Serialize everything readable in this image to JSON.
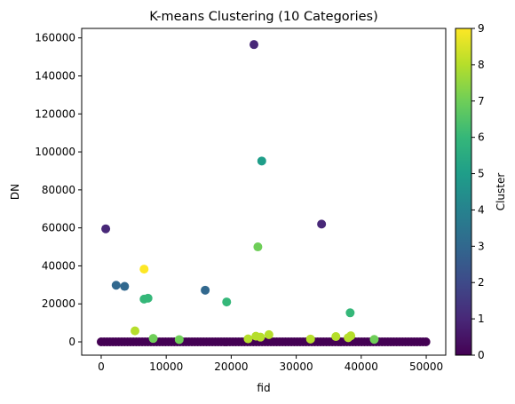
{
  "chart_data": {
    "type": "scatter",
    "title": "K-means Clustering (10 Categories)",
    "xlabel": "fid",
    "ylabel": "DN",
    "xlim": [
      -3000,
      53000
    ],
    "ylim": [
      -7000,
      165000
    ],
    "xticks": [
      0,
      10000,
      20000,
      30000,
      40000,
      50000
    ],
    "yticks": [
      0,
      20000,
      40000,
      60000,
      80000,
      100000,
      120000,
      140000,
      160000
    ],
    "grid": false,
    "colorbar": {
      "label": "Cluster",
      "min": 0,
      "max": 9,
      "ticks": [
        0,
        1,
        2,
        3,
        4,
        5,
        6,
        7,
        8,
        9
      ],
      "colormap": "viridis"
    },
    "points": [
      {
        "x": 23500,
        "y": 156500,
        "cluster": 1
      },
      {
        "x": 24700,
        "y": 95200,
        "cluster": 5
      },
      {
        "x": 700,
        "y": 59500,
        "cluster": 1
      },
      {
        "x": 33900,
        "y": 62000,
        "cluster": 1
      },
      {
        "x": 24100,
        "y": 50000,
        "cluster": 7
      },
      {
        "x": 6600,
        "y": 38300,
        "cluster": 9
      },
      {
        "x": 2300,
        "y": 29800,
        "cluster": 3
      },
      {
        "x": 3600,
        "y": 29200,
        "cluster": 3
      },
      {
        "x": 6600,
        "y": 22500,
        "cluster": 6
      },
      {
        "x": 7200,
        "y": 23000,
        "cluster": 6
      },
      {
        "x": 16000,
        "y": 27200,
        "cluster": 3
      },
      {
        "x": 19300,
        "y": 21000,
        "cluster": 6
      },
      {
        "x": 38300,
        "y": 15300,
        "cluster": 6
      },
      {
        "x": 5200,
        "y": 5800,
        "cluster": 8
      },
      {
        "x": 23800,
        "y": 3000,
        "cluster": 8
      },
      {
        "x": 24500,
        "y": 2500,
        "cluster": 8
      },
      {
        "x": 25800,
        "y": 3800,
        "cluster": 8
      },
      {
        "x": 32200,
        "y": 1500,
        "cluster": 8
      },
      {
        "x": 36100,
        "y": 2800,
        "cluster": 8
      },
      {
        "x": 38400,
        "y": 3200,
        "cluster": 8
      },
      {
        "x": 38000,
        "y": 2200,
        "cluster": 8
      },
      {
        "x": 8000,
        "y": 1800,
        "cluster": 7
      },
      {
        "x": 12000,
        "y": 1200,
        "cluster": 7
      },
      {
        "x": 22600,
        "y": 1600,
        "cluster": 8
      },
      {
        "x": 42000,
        "y": 1300,
        "cluster": 7
      }
    ],
    "baseline": {
      "x_from": 0,
      "x_to": 50000,
      "y": 0,
      "cluster": 0
    }
  }
}
